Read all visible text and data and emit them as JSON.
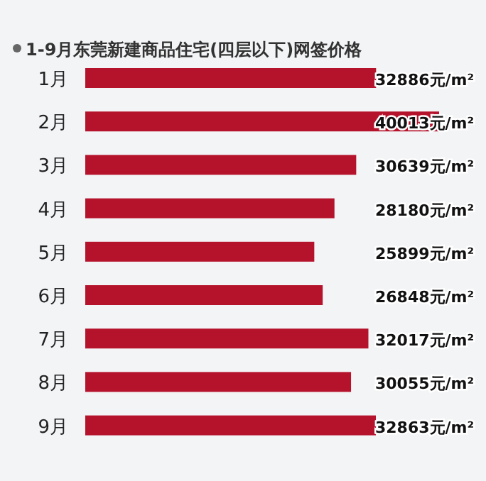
{
  "chart_data": {
    "type": "bar",
    "orientation": "horizontal",
    "title": "1-9月东莞新建商品住宅(四层以下)网签价格",
    "categories": [
      "1月",
      "2月",
      "3月",
      "4月",
      "5月",
      "6月",
      "7月",
      "8月",
      "9月"
    ],
    "series": [
      {
        "color": "#b5122b",
        "values": [
          32886,
          40013,
          30639,
          28180,
          25899,
          26848,
          32017,
          30055,
          32863
        ],
        "value_labels": [
          "32886元/m²",
          "40013元/m²",
          "30639元/m²",
          "28180元/m²",
          "25899元/m²",
          "26848元/m²",
          "32017元/m²",
          "30055元/m²",
          "32863元/m²"
        ]
      }
    ],
    "xlim": [
      0,
      40013
    ],
    "tick_labels": "y"
  }
}
